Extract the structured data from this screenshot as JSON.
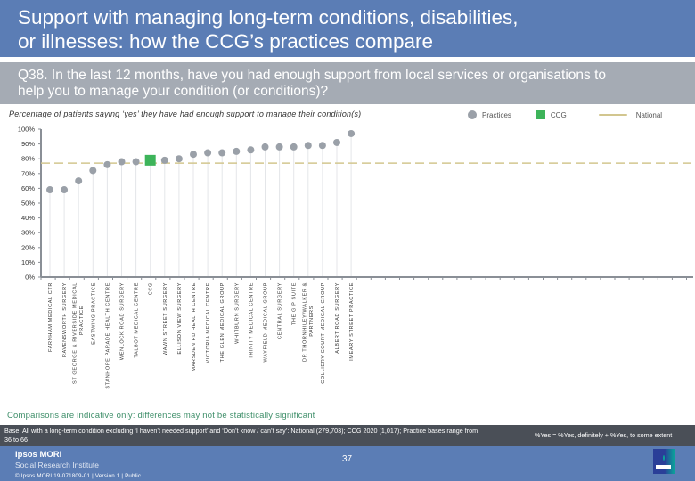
{
  "header": {
    "title_line1": "Support with managing long-term conditions, disabilities,",
    "title_line2": "or illnesses: how the CCG’s practices compare"
  },
  "question": {
    "line1": "Q38. In the last 12 months, have you had enough support from local services or organisations to",
    "line2": "help you to manage your condition (or conditions)?"
  },
  "colors": {
    "title_band": "#5b7db5",
    "question_band": "#a5abb4",
    "practice_point": "#9aa0a8",
    "ccg_point": "#3db45a",
    "national_line": "#d2c68f",
    "caveat_text": "#3f8f6a",
    "base_band": "#4a4f57"
  },
  "chart_data": {
    "type": "scatter",
    "title": "Percentage of patients saying ‘yes’ they have had enough support to manage their condition(s)",
    "xlabel": "",
    "ylabel": "",
    "ylim": [
      0,
      100
    ],
    "yticks": [
      "0%",
      "10%",
      "20%",
      "30%",
      "40%",
      "50%",
      "60%",
      "70%",
      "80%",
      "90%",
      "100%"
    ],
    "grid": false,
    "legend": {
      "placement": "top-right",
      "entries": [
        {
          "label": "Practices",
          "marker": "circle"
        },
        {
          "label": "CCG",
          "marker": "square"
        },
        {
          "label": "National",
          "marker": "dashed-line"
        }
      ]
    },
    "national_value": 77,
    "categories": [
      "FARNHAM MEDICAL CTR",
      "RAVENSWORTH SURGERY",
      "ST GEORGE & RIVERSIDE MEDICAL PRACTICE",
      "EASTWING PRACTICE",
      "STANHOPE PARADE HEALTH CENTRE",
      "WENLOCK ROAD SURGERY",
      "TALBOT MEDICAL CENTRE",
      "CCG",
      "WAWN STREET SURGERY",
      "ELLISON VIEW SURGERY",
      "MARSDEN RD HEALTH CENTRE",
      "VICTORIA MEDICAL CENTRE",
      "THE GLEN MEDICAL GROUP",
      "WHITBURN SURGERY",
      "TRINITY MEDICAL CENTRE",
      "WAYFIELD MEDICAL GROUP",
      "CENTRAL SURGERY",
      "THE G P SUITE",
      "DR THORNHILEY/WALKER & PARTNERS",
      "COLLIERY COURT MEDICAL GROUP",
      "ALBERT ROAD SURGERY",
      "IMEARY STREET PRACTICE"
    ],
    "series": [
      {
        "name": "Practices",
        "values": [
          59,
          59,
          65,
          72,
          76,
          78,
          78,
          null,
          79,
          80,
          83,
          84,
          84,
          85,
          86,
          88,
          88,
          88,
          89,
          89,
          91,
          97
        ]
      },
      {
        "name": "CCG",
        "values": [
          null,
          null,
          null,
          null,
          null,
          null,
          null,
          79,
          null,
          null,
          null,
          null,
          null,
          null,
          null,
          null,
          null,
          null,
          null,
          null,
          null,
          null
        ]
      }
    ]
  },
  "footer": {
    "caveat": "Comparisons are indicative only: differences may not be statistically significant",
    "base_note": "Base: All with a long-term condition excluding ‘I haven’t needed support’ and ‘Don’t know / can’t say’: National (279,703); CCG 2020 (1,017); Practice bases range from 36 to 66",
    "definition": "%Yes = %Yes, definitely + %Yes, to some extent",
    "brand_name": "Ipsos MORI",
    "brand_sub": "Social Research Institute",
    "copyright": "© Ipsos MORI      19-071809-01 | Version 1 | Public",
    "page_number": "37",
    "logo_icon": "ipsos-logo"
  }
}
